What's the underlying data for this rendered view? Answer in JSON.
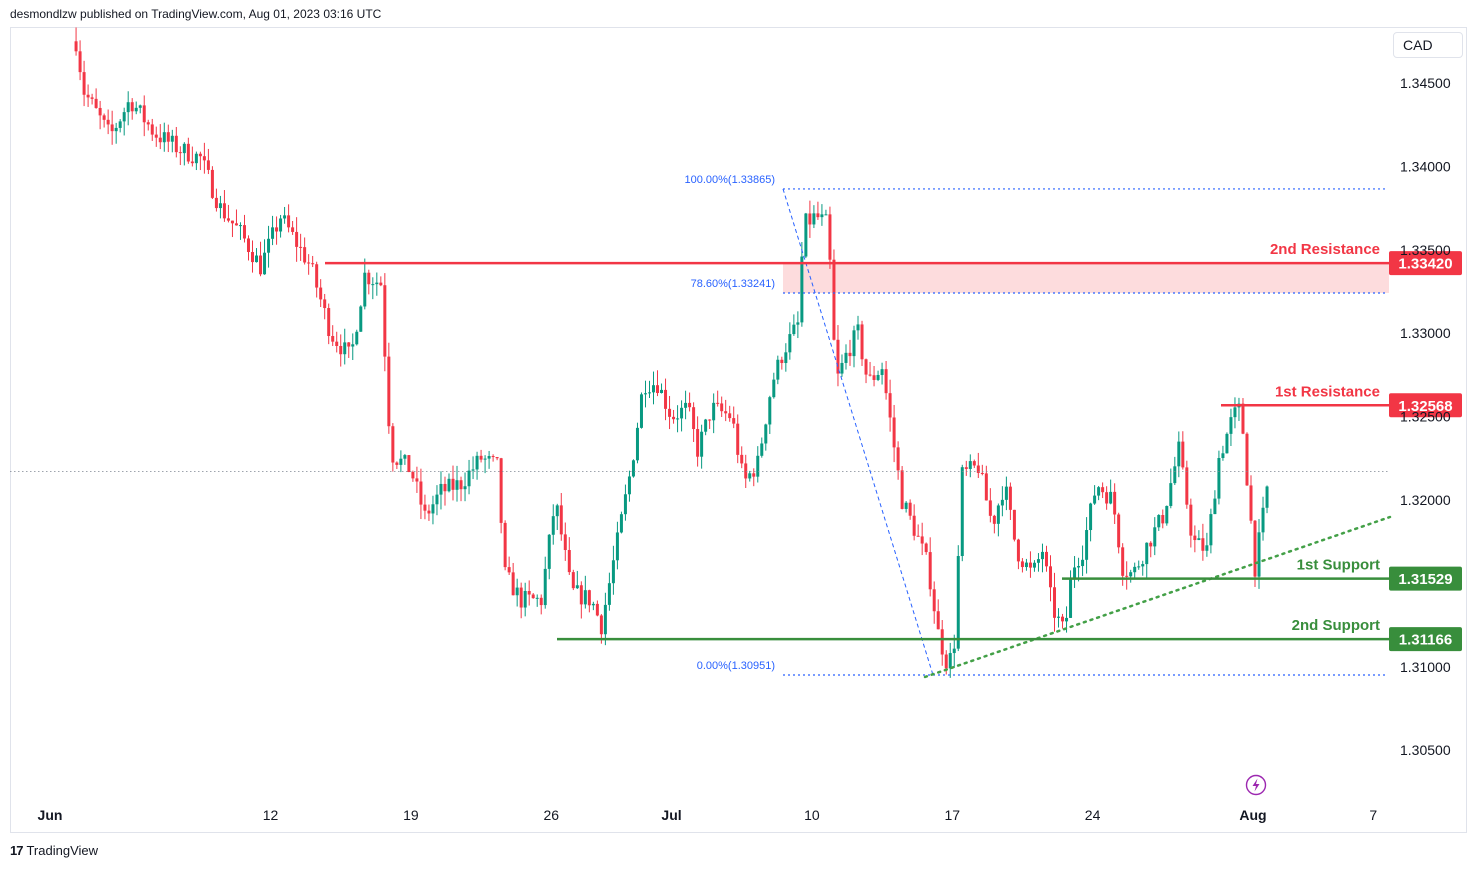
{
  "header": {
    "publisher": "desmondlzw published on TradingView.com, Aug 01, 2023 03:16 UTC"
  },
  "footer": {
    "brand": "TradingView"
  },
  "currency_label": "CAD",
  "colors": {
    "bull": "#089981",
    "bear": "#f23645",
    "resistance": "#f23645",
    "support": "#388e3c",
    "fib": "#2962ff",
    "zone": "#fddcdd",
    "text": "#131722"
  },
  "icons": {
    "flash": "lightning-icon",
    "logo": "tradingview-logo-icon"
  },
  "chart_data": {
    "type": "candlestick",
    "ylim": [
      1.303,
      1.35
    ],
    "y_ticks": [
      {
        "value": 1.345,
        "label": "1.34500"
      },
      {
        "value": 1.34,
        "label": "1.34000"
      },
      {
        "value": 1.335,
        "label": "1.33500"
      },
      {
        "value": 1.33,
        "label": "1.33000"
      },
      {
        "value": 1.325,
        "label": "1.32500"
      },
      {
        "value": 1.32,
        "label": "1.32000"
      },
      {
        "value": 1.31,
        "label": "1.31000"
      },
      {
        "value": 1.305,
        "label": "1.30500"
      }
    ],
    "x_ticks": [
      {
        "day": 0,
        "label": "Jun",
        "bold": true
      },
      {
        "day": 11,
        "label": "12",
        "bold": false
      },
      {
        "day": 18,
        "label": "19",
        "bold": false
      },
      {
        "day": 25,
        "label": "26",
        "bold": false
      },
      {
        "day": 31,
        "label": "Jul",
        "bold": true
      },
      {
        "day": 38,
        "label": "10",
        "bold": false
      },
      {
        "day": 45,
        "label": "17",
        "bold": false
      },
      {
        "day": 52,
        "label": "24",
        "bold": false
      },
      {
        "day": 60,
        "label": "Aug",
        "bold": true
      },
      {
        "day": 66,
        "label": "7",
        "bold": false
      }
    ],
    "price_path": [
      {
        "day": 1.3,
        "price": 1.3475
      },
      {
        "day": 1.7,
        "price": 1.3445
      },
      {
        "day": 3.0,
        "price": 1.3418
      },
      {
        "day": 4.0,
        "price": 1.344
      },
      {
        "day": 5.2,
        "price": 1.342
      },
      {
        "day": 6.5,
        "price": 1.341
      },
      {
        "day": 7.5,
        "price": 1.3405
      },
      {
        "day": 8.5,
        "price": 1.3375
      },
      {
        "day": 9.5,
        "price": 1.336
      },
      {
        "day": 10.5,
        "price": 1.334
      },
      {
        "day": 11.5,
        "price": 1.337
      },
      {
        "day": 12.5,
        "price": 1.335
      },
      {
        "day": 13.0,
        "price": 1.334
      },
      {
        "day": 14.0,
        "price": 1.33
      },
      {
        "day": 15.0,
        "price": 1.3285
      },
      {
        "day": 15.7,
        "price": 1.3335
      },
      {
        "day": 16.5,
        "price": 1.333
      },
      {
        "day": 17.0,
        "price": 1.3228
      },
      {
        "day": 18.0,
        "price": 1.3218
      },
      {
        "day": 18.7,
        "price": 1.319
      },
      {
        "day": 19.5,
        "price": 1.3205
      },
      {
        "day": 20.5,
        "price": 1.321
      },
      {
        "day": 21.5,
        "price": 1.3225
      },
      {
        "day": 22.3,
        "price": 1.322
      },
      {
        "day": 22.7,
        "price": 1.3155
      },
      {
        "day": 23.5,
        "price": 1.314
      },
      {
        "day": 24.5,
        "price": 1.314
      },
      {
        "day": 25.2,
        "price": 1.32
      },
      {
        "day": 26.0,
        "price": 1.3145
      },
      {
        "day": 27.0,
        "price": 1.314
      },
      {
        "day": 27.5,
        "price": 1.3125
      },
      {
        "day": 28.3,
        "price": 1.3175
      },
      {
        "day": 29.0,
        "price": 1.322
      },
      {
        "day": 29.6,
        "price": 1.327
      },
      {
        "day": 30.3,
        "price": 1.327
      },
      {
        "day": 31.0,
        "price": 1.325
      },
      {
        "day": 31.8,
        "price": 1.3255
      },
      {
        "day": 32.3,
        "price": 1.323
      },
      {
        "day": 33.0,
        "price": 1.3255
      },
      {
        "day": 34.0,
        "price": 1.325
      },
      {
        "day": 34.6,
        "price": 1.321
      },
      {
        "day": 35.3,
        "price": 1.3222
      },
      {
        "day": 36.0,
        "price": 1.327
      },
      {
        "day": 36.6,
        "price": 1.329
      },
      {
        "day": 37.3,
        "price": 1.3305
      },
      {
        "day": 37.6,
        "price": 1.3365
      },
      {
        "day": 38.2,
        "price": 1.337
      },
      {
        "day": 38.8,
        "price": 1.3365
      },
      {
        "day": 39.2,
        "price": 1.327
      },
      {
        "day": 39.8,
        "price": 1.329
      },
      {
        "day": 40.3,
        "price": 1.33
      },
      {
        "day": 40.8,
        "price": 1.327
      },
      {
        "day": 41.5,
        "price": 1.328
      },
      {
        "day": 42.0,
        "price": 1.324
      },
      {
        "day": 42.5,
        "price": 1.32
      },
      {
        "day": 43.2,
        "price": 1.318
      },
      {
        "day": 43.8,
        "price": 1.316
      },
      {
        "day": 44.3,
        "price": 1.312
      },
      {
        "day": 44.8,
        "price": 1.31
      },
      {
        "day": 45.1,
        "price": 1.3115
      },
      {
        "day": 45.5,
        "price": 1.3215
      },
      {
        "day": 46.3,
        "price": 1.322
      },
      {
        "day": 47.0,
        "price": 1.3185
      },
      {
        "day": 47.6,
        "price": 1.321
      },
      {
        "day": 48.2,
        "price": 1.317
      },
      {
        "day": 49.0,
        "price": 1.3155
      },
      {
        "day": 49.5,
        "price": 1.317
      },
      {
        "day": 50.0,
        "price": 1.3135
      },
      {
        "day": 50.6,
        "price": 1.312
      },
      {
        "day": 51.0,
        "price": 1.316
      },
      {
        "day": 51.5,
        "price": 1.317
      },
      {
        "day": 52.2,
        "price": 1.321
      },
      {
        "day": 53.0,
        "price": 1.32
      },
      {
        "day": 53.5,
        "price": 1.316
      },
      {
        "day": 54.0,
        "price": 1.3155
      },
      {
        "day": 54.8,
        "price": 1.3175
      },
      {
        "day": 55.5,
        "price": 1.319
      },
      {
        "day": 56.3,
        "price": 1.323
      },
      {
        "day": 57.0,
        "price": 1.3175
      },
      {
        "day": 57.7,
        "price": 1.317
      },
      {
        "day": 58.3,
        "price": 1.3225
      },
      {
        "day": 59.0,
        "price": 1.325
      },
      {
        "day": 59.4,
        "price": 1.3255
      },
      {
        "day": 59.8,
        "price": 1.32
      },
      {
        "day": 60.1,
        "price": 1.316
      },
      {
        "day": 60.5,
        "price": 1.319
      },
      {
        "day": 60.8,
        "price": 1.3215
      }
    ],
    "fib_levels": [
      {
        "label": "100.00%(1.33865)",
        "price": 1.33865
      },
      {
        "label": "78.60%(1.33241)",
        "price": 1.33241
      },
      {
        "label": "0.00%(1.30951)",
        "price": 1.30951
      }
    ],
    "levels": [
      {
        "name": "2nd Resistance",
        "price": 1.3342,
        "tag": "1.33420",
        "kind": "resistance"
      },
      {
        "name": "1st Resistance",
        "price": 1.32568,
        "tag": "1.32568",
        "kind": "resistance"
      },
      {
        "name": "1st Support",
        "price": 1.31529,
        "tag": "1.31529",
        "kind": "support"
      },
      {
        "name": "2nd Support",
        "price": 1.31166,
        "tag": "1.31166",
        "kind": "support"
      }
    ],
    "current_price": 1.3217
  }
}
